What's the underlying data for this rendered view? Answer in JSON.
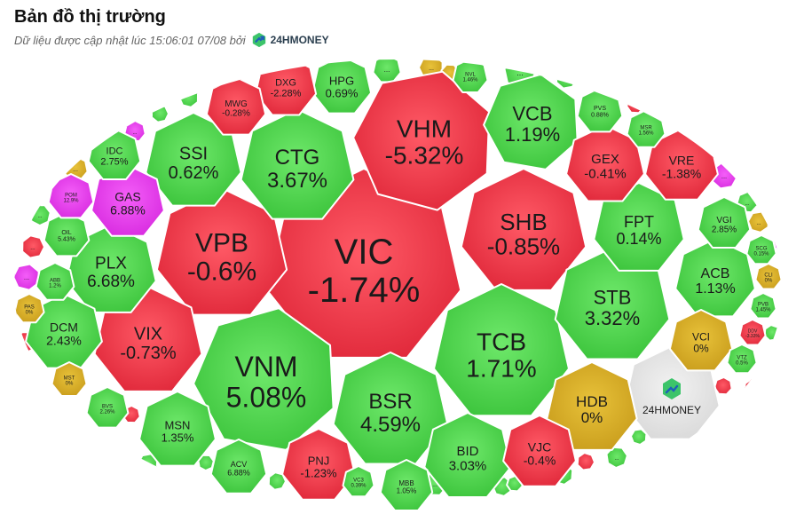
{
  "header": {
    "title": "Bản đồ thị trường",
    "subtitle": "Dữ liệu được cập nhật lúc 15:06:01 07/08 bởi",
    "brand": "24HMONEY"
  },
  "colors": {
    "up": "#4cd64c",
    "down": "#ef3242",
    "flat": "#d9b12a",
    "ceiling": "#e93bf0",
    "logo_bg": "#e6e6e6",
    "border": "#ffffff"
  },
  "chart_data": {
    "type": "bubble-treemap",
    "title": "Bản đồ thị trường",
    "items": [
      {
        "ticker": "VIC",
        "change": "-1.74%",
        "trend": "down"
      },
      {
        "ticker": "VHM",
        "change": "-5.32%",
        "trend": "down"
      },
      {
        "ticker": "VPB",
        "change": "-0.6%",
        "trend": "down"
      },
      {
        "ticker": "SHB",
        "change": "-0.85%",
        "trend": "down"
      },
      {
        "ticker": "VNM",
        "change": "5.08%",
        "trend": "up"
      },
      {
        "ticker": "TCB",
        "change": "1.71%",
        "trend": "up"
      },
      {
        "ticker": "CTG",
        "change": "3.67%",
        "trend": "up"
      },
      {
        "ticker": "BSR",
        "change": "4.59%",
        "trend": "up"
      },
      {
        "ticker": "VCB",
        "change": "1.19%",
        "trend": "up"
      },
      {
        "ticker": "STB",
        "change": "3.32%",
        "trend": "up"
      },
      {
        "ticker": "SSI",
        "change": "0.62%",
        "trend": "up"
      },
      {
        "ticker": "VIX",
        "change": "-0.73%",
        "trend": "down"
      },
      {
        "ticker": "PLX",
        "change": "6.68%",
        "trend": "up"
      },
      {
        "ticker": "FPT",
        "change": "0.14%",
        "trend": "up"
      },
      {
        "ticker": "ACB",
        "change": "1.13%",
        "trend": "up"
      },
      {
        "ticker": "HDB",
        "change": "0%",
        "trend": "flat"
      },
      {
        "ticker": "GEX",
        "change": "-0.41%",
        "trend": "down"
      },
      {
        "ticker": "VRE",
        "change": "-1.38%",
        "trend": "down"
      },
      {
        "ticker": "BID",
        "change": "3.03%",
        "trend": "up"
      },
      {
        "ticker": "VJC",
        "change": "-0.4%",
        "trend": "down"
      },
      {
        "ticker": "MSN",
        "change": "1.35%",
        "trend": "up"
      },
      {
        "ticker": "PNJ",
        "change": "-1.23%",
        "trend": "down"
      },
      {
        "ticker": "DCM",
        "change": "2.43%",
        "trend": "up"
      },
      {
        "ticker": "GAS",
        "change": "6.88%",
        "trend": "ceiling"
      },
      {
        "ticker": "IDC",
        "change": "2.75%",
        "trend": "up"
      },
      {
        "ticker": "HPG",
        "change": "0.69%",
        "trend": "up"
      },
      {
        "ticker": "DXG",
        "change": "-2.28%",
        "trend": "down"
      },
      {
        "ticker": "MWG",
        "change": "-0.28%",
        "trend": "down"
      },
      {
        "ticker": "VCI",
        "change": "0%",
        "trend": "flat"
      },
      {
        "ticker": "VGI",
        "change": "2.85%",
        "trend": "up"
      },
      {
        "ticker": "ACV",
        "change": "6.88%",
        "trend": "up"
      },
      {
        "ticker": "MBB",
        "change": "1.05%",
        "trend": "up"
      },
      {
        "ticker": "VC3",
        "change": "0.39%",
        "trend": "up"
      },
      {
        "ticker": "OIL",
        "change": "5.43%",
        "trend": "up"
      },
      {
        "ticker": "ABB",
        "change": "1.2%",
        "trend": "up"
      },
      {
        "ticker": "POM",
        "change": "12.9%",
        "trend": "ceiling"
      },
      {
        "ticker": "PAS",
        "change": "0%",
        "trend": "flat"
      },
      {
        "ticker": "MST",
        "change": "0%",
        "trend": "flat"
      },
      {
        "ticker": "BVS",
        "change": "2.26%",
        "trend": "up"
      },
      {
        "ticker": "PVS",
        "change": "0.88%",
        "trend": "up"
      },
      {
        "ticker": "MSR",
        "change": "1.56%",
        "trend": "up"
      },
      {
        "ticker": "NVL",
        "change": "1.46%",
        "trend": "up"
      },
      {
        "ticker": "SCG",
        "change": "0.15%",
        "trend": "up"
      },
      {
        "ticker": "CLI",
        "change": "0%",
        "trend": "flat"
      },
      {
        "ticker": "PVB",
        "change": "1.45%",
        "trend": "up"
      },
      {
        "ticker": "DDV",
        "change": "-3.33%",
        "trend": "down"
      },
      {
        "ticker": "VTZ",
        "change": "0.5%",
        "trend": "up"
      }
    ],
    "overflow_label": "..."
  }
}
